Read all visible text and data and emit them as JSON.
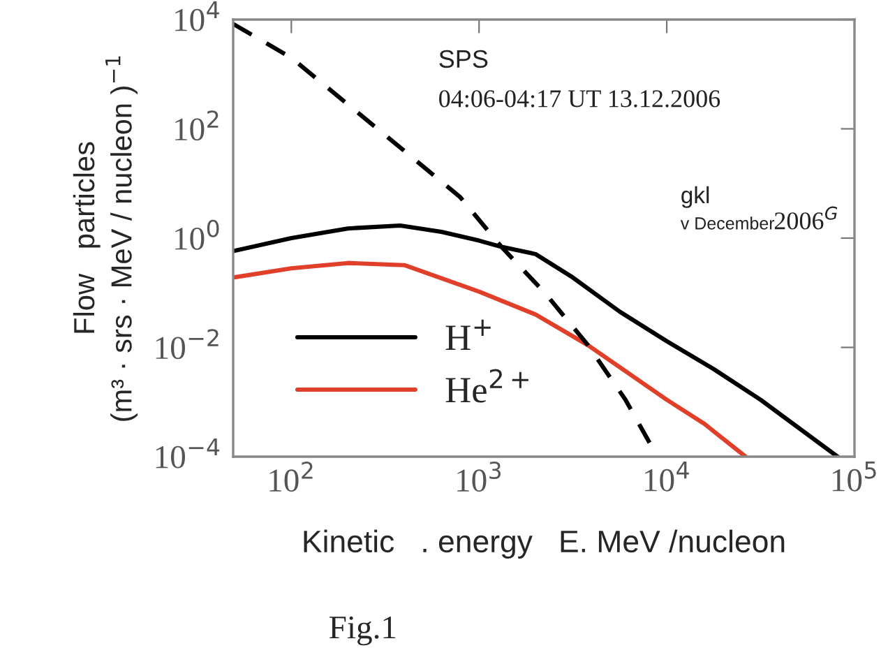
{
  "chart_data": {
    "type": "line",
    "log": "xy",
    "xlabel": "Kinetic   . energy   E. MeV /nucleon",
    "ylabel": "Flow   particles\n(m³ · srs · MeV / nucleon )$^{−1}$",
    "xlim": [
      49,
      100000
    ],
    "ylim": [
      0.0001,
      10000
    ],
    "xticks": [
      {
        "value": 100,
        "label": "10$^{2}$"
      },
      {
        "value": 1000,
        "label": "10$^{3}$"
      },
      {
        "value": 10000,
        "label": "10$^{4}$"
      },
      {
        "value": 100000,
        "label": "10$^{5}$"
      }
    ],
    "yticks": [
      {
        "value": 0.0001,
        "label": "10$^{−4}$"
      },
      {
        "value": 0.01,
        "label": "10$^{−2}$"
      },
      {
        "value": 1,
        "label": "10$^{0}$"
      },
      {
        "value": 100,
        "label": "10$^{2}$"
      },
      {
        "value": 10000,
        "label": "10$^{4}$"
      }
    ],
    "grid": false,
    "legend": "bottom left",
    "series": [
      {
        "name": "H$^{+}$",
        "color": "#000000",
        "line_style": "solid",
        "x": [
          49,
          100,
          200,
          380,
          630,
          1000,
          1320,
          2000,
          3160,
          5620,
          10000,
          17800,
          31600,
          81300
        ],
        "values": [
          0.58,
          1.0,
          1.5,
          1.7,
          1.3,
          0.9,
          0.69,
          0.51,
          0.19,
          0.045,
          0.013,
          0.004,
          0.0011,
          0.0001
        ]
      },
      {
        "name": "He$^{2+}$",
        "color": "#e0402a",
        "line_style": "solid",
        "x": [
          49,
          100,
          200,
          400,
          1000,
          2000,
          3800,
          10000,
          15850,
          26300
        ],
        "values": [
          0.19,
          0.28,
          0.35,
          0.32,
          0.105,
          0.04,
          0.011,
          0.0011,
          0.0004,
          0.0001
        ]
      },
      {
        "color": "#000000",
        "line_style": "dashed",
        "x": [
          49,
          100,
          200,
          398,
          794,
          1318,
          2239,
          3802,
          6026,
          8913
        ],
        "values": [
          8300,
          2000,
          280,
          40,
          5.6,
          0.69,
          0.1,
          0.011,
          0.0011,
          0.0001
        ]
      }
    ],
    "annotations": [
      "SPS",
      "04:06-04:17 UT 13.12.2006",
      "gkl",
      "v December",
      "2006$^{G}$",
      "Fig.1"
    ]
  }
}
